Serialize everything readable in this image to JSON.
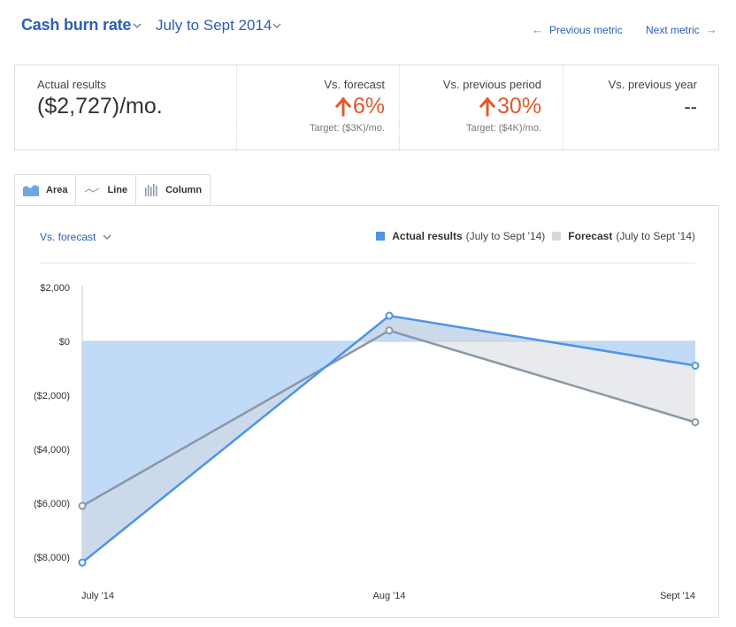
{
  "header": {
    "metric_title": "Cash burn rate",
    "period": "July to Sept 2014",
    "previous_metric": "Previous metric",
    "next_metric": "Next metric"
  },
  "stats": {
    "actual": {
      "label": "Actual results",
      "value": "($2,727)/mo."
    },
    "vs_forecast": {
      "label": "Vs. forecast",
      "value": "6%",
      "target": "Target: ($3K)/mo."
    },
    "vs_previous_period": {
      "label": "Vs. previous period",
      "value": "30%",
      "target": "Target: ($4K)/mo."
    },
    "vs_previous_year": {
      "label": "Vs. previous year",
      "value": "--"
    }
  },
  "tabs": [
    {
      "label": "Area",
      "icon": "area-chart-icon",
      "active": true
    },
    {
      "label": "Line",
      "icon": "line-chart-icon",
      "active": false
    },
    {
      "label": "Column",
      "icon": "column-chart-icon",
      "active": false
    }
  ],
  "comparison_select": "Vs. forecast",
  "colors": {
    "accent": "#2b5fb4",
    "increase": "#e05a2b",
    "actual_series": "#4a94ec",
    "forecast_series": "#d5d9de"
  },
  "chart_data": {
    "type": "area",
    "categories": [
      "July '14",
      "Aug '14",
      "Sept '14"
    ],
    "series": [
      {
        "name": "Actual results",
        "period": "(July to Sept '14)",
        "values": [
          -8200,
          950,
          -900
        ]
      },
      {
        "name": "Forecast",
        "period": "(July to Sept '14)",
        "values": [
          -6100,
          400,
          -3000
        ]
      }
    ],
    "y_ticks": [
      2000,
      0,
      -2000,
      -4000,
      -6000,
      -8000
    ],
    "y_tick_labels": [
      "$2,000",
      "$0",
      "($2,000)",
      "($4,000)",
      "($6,000)",
      "($8,000)"
    ],
    "ylim": [
      -8200,
      2000
    ],
    "legend_position": "top-right",
    "grid": false
  }
}
